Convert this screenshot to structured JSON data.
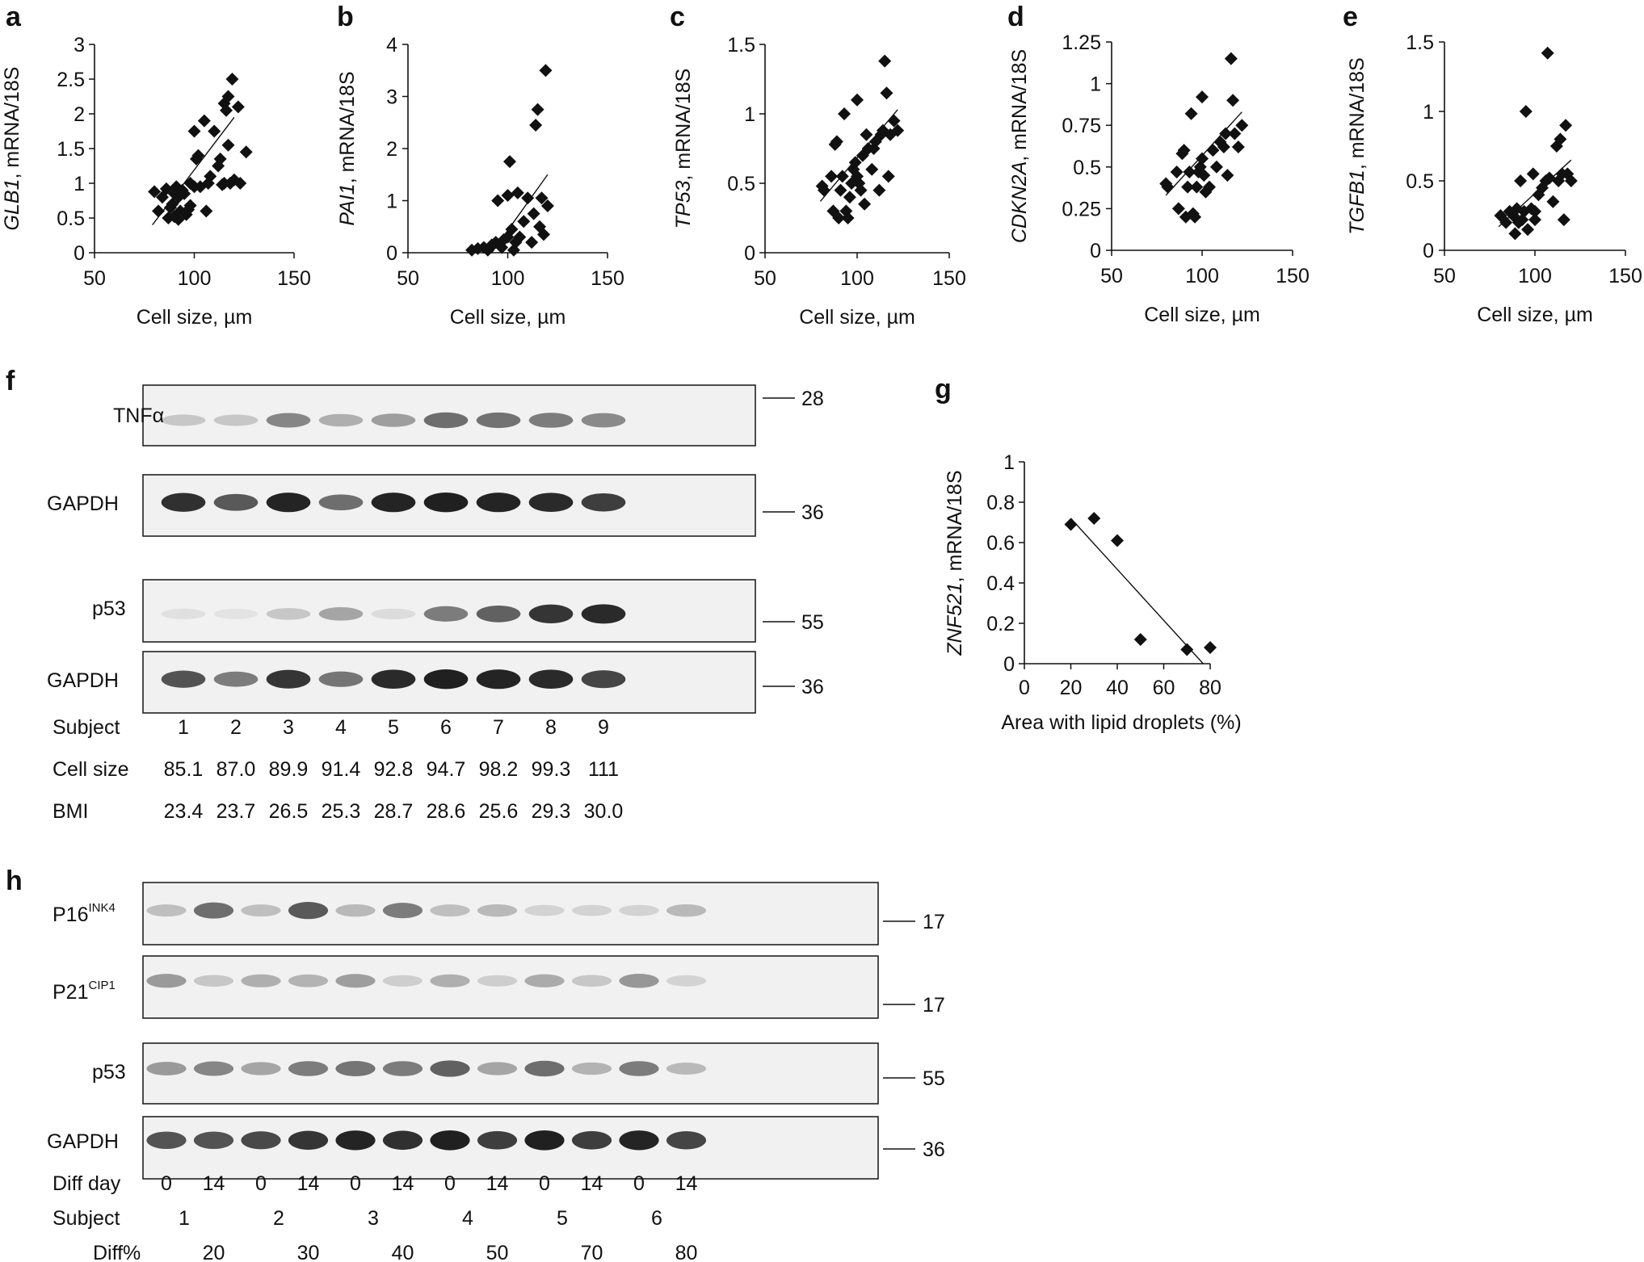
{
  "scatter_panels": [
    {
      "letter": "a",
      "gene": "GLB1",
      "ylabel_suffix": ", mRNA/18S",
      "xlabel": "Cell size, µm",
      "xlim": [
        50,
        150
      ],
      "xticks": [
        "50",
        "100",
        "150"
      ],
      "ylim": [
        0,
        3
      ],
      "yticks": [
        "0",
        "0.5",
        "1",
        "1.5",
        "2",
        "2.5",
        "3"
      ],
      "ytick_values": [
        0,
        0.5,
        1,
        1.5,
        2,
        2.5,
        3
      ],
      "fit": [
        [
          79,
          0.4
        ],
        [
          120,
          1.95
        ]
      ]
    },
    {
      "letter": "b",
      "gene": "PAI1",
      "ylabel_suffix": ", mRNA/18S",
      "xlabel": "Cell size, µm",
      "xlim": [
        50,
        150
      ],
      "xticks": [
        "50",
        "100",
        "150"
      ],
      "ylim": [
        0,
        4
      ],
      "yticks": [
        "0",
        "1",
        "2",
        "3",
        "4"
      ],
      "ytick_values": [
        0,
        1,
        2,
        3,
        4
      ],
      "fit": [
        [
          92,
          0
        ],
        [
          120,
          1.5
        ]
      ]
    },
    {
      "letter": "c",
      "gene": "TP53",
      "ylabel_suffix": ", mRNA/18S",
      "xlabel": "Cell size, µm",
      "xlim": [
        50,
        150
      ],
      "xticks": [
        "50",
        "100",
        "150"
      ],
      "ylim": [
        0,
        1.5
      ],
      "yticks": [
        "0",
        "0.5",
        "1",
        "1.5"
      ],
      "ytick_values": [
        0,
        0.5,
        1,
        1.5
      ],
      "fit": [
        [
          80,
          0.37
        ],
        [
          122,
          1.03
        ]
      ]
    },
    {
      "letter": "d",
      "gene": "CDKN2A",
      "ylabel_suffix": ", mRNA/18S",
      "xlabel": "Cell size, µm",
      "xlim": [
        50,
        150
      ],
      "xticks": [
        "50",
        "100",
        "150"
      ],
      "ylim": [
        0,
        1.25
      ],
      "yticks": [
        "0",
        "0.25",
        "0.5",
        "0.75",
        "1",
        "1.25"
      ],
      "ytick_values": [
        0,
        0.25,
        0.5,
        0.75,
        1,
        1.25
      ],
      "fit": [
        [
          80,
          0.33
        ],
        [
          122,
          0.83
        ]
      ]
    },
    {
      "letter": "e",
      "gene": "TGFB1",
      "ylabel_suffix": ", mRNA/18S",
      "xlabel": "Cell size, µm",
      "xlim": [
        50,
        150
      ],
      "xticks": [
        "50",
        "100",
        "150"
      ],
      "ylim": [
        0,
        1.5
      ],
      "yticks": [
        "0",
        "0.5",
        "1",
        "1.5"
      ],
      "ytick_values": [
        0,
        0.5,
        1,
        1.5
      ],
      "fit": [
        [
          80,
          0.17
        ],
        [
          120,
          0.65
        ]
      ]
    }
  ],
  "panel_g": {
    "letter": "g",
    "gene": "ZNF521",
    "ylabel_suffix": ", mRNA/18S",
    "xlabel": "Area with lipid droplets (%)",
    "xlim": [
      0,
      80
    ],
    "xticks": [
      "0",
      "20",
      "40",
      "60",
      "80"
    ],
    "xtick_values": [
      0,
      20,
      40,
      60,
      80
    ],
    "ylim": [
      0,
      1
    ],
    "yticks": [
      "0",
      "0.2",
      "0.4",
      "0.6",
      "0.8",
      "1"
    ],
    "ytick_values": [
      0,
      0.2,
      0.4,
      0.6,
      0.8,
      1
    ],
    "fit": [
      [
        20,
        0.72
      ],
      [
        77,
        0
      ]
    ]
  },
  "chart_data": [
    {
      "type": "scatter",
      "panel": "a",
      "xlabel": "Cell size, µm",
      "ylabel": "GLB1, mRNA/18S",
      "xlim": [
        50,
        150
      ],
      "ylim": [
        0,
        3
      ],
      "x": [
        80,
        82,
        84,
        86,
        87,
        88,
        89,
        90,
        90,
        91,
        92,
        92,
        93,
        94,
        95,
        96,
        97,
        98,
        98,
        100,
        100,
        101,
        102,
        103,
        105,
        106,
        107,
        108,
        110,
        112,
        113,
        114,
        115,
        115,
        116,
        117,
        117,
        118,
        119,
        120,
        122,
        123,
        126
      ],
      "y": [
        0.88,
        0.6,
        0.8,
        0.92,
        0.5,
        0.65,
        0.7,
        0.85,
        0.52,
        0.95,
        0.48,
        0.8,
        0.6,
        0.9,
        0.85,
        0.55,
        0.62,
        1.0,
        0.68,
        1.75,
        0.95,
        1.35,
        1.4,
        0.95,
        1.9,
        0.6,
        1.0,
        1.1,
        1.75,
        1.25,
        1.35,
        0.98,
        2.15,
        1.0,
        2.05,
        1.55,
        2.25,
        1.0,
        2.5,
        1.05,
        2.1,
        1.0,
        1.45
      ]
    },
    {
      "type": "scatter",
      "panel": "b",
      "xlabel": "Cell size, µm",
      "ylabel": "PAI1, mRNA/18S",
      "xlim": [
        50,
        150
      ],
      "ylim": [
        0,
        4
      ],
      "x": [
        82,
        85,
        88,
        90,
        92,
        94,
        95,
        97,
        98,
        100,
        100,
        101,
        102,
        103,
        104,
        105,
        106,
        108,
        110,
        112,
        113,
        114,
        115,
        116,
        117,
        118,
        119,
        120
      ],
      "y": [
        0.05,
        0.08,
        0.1,
        0.05,
        0.15,
        0.2,
        1.0,
        0.1,
        0.25,
        0.3,
        1.1,
        1.75,
        0.45,
        0.05,
        0.2,
        1.15,
        0.3,
        0.6,
        1.05,
        0.2,
        0.75,
        2.45,
        2.75,
        0.5,
        1.05,
        0.35,
        3.5,
        0.9
      ]
    },
    {
      "type": "scatter",
      "panel": "c",
      "xlabel": "Cell size, µm",
      "ylabel": "TP53, mRNA/18S",
      "xlim": [
        50,
        150
      ],
      "ylim": [
        0,
        1.5
      ],
      "x": [
        81,
        82,
        86,
        87,
        88,
        89,
        90,
        91,
        92,
        93,
        94,
        95,
        96,
        97,
        98,
        99,
        100,
        100,
        101,
        102,
        103,
        104,
        105,
        106,
        108,
        109,
        110,
        112,
        113,
        114,
        115,
        116,
        117,
        118,
        120,
        122
      ],
      "y": [
        0.48,
        0.45,
        0.55,
        0.3,
        0.78,
        0.8,
        0.25,
        0.45,
        0.55,
        1.0,
        0.3,
        0.25,
        0.4,
        0.5,
        0.6,
        0.65,
        1.1,
        0.55,
        0.5,
        0.45,
        0.7,
        0.35,
        0.85,
        0.75,
        0.6,
        0.75,
        0.8,
        0.45,
        0.85,
        0.88,
        1.38,
        1.15,
        0.55,
        0.85,
        0.95,
        0.88
      ]
    },
    {
      "type": "scatter",
      "panel": "d",
      "xlabel": "Cell size, µm",
      "ylabel": "CDKN2A, mRNA/18S",
      "xlim": [
        50,
        150
      ],
      "ylim": [
        0,
        1.25
      ],
      "x": [
        80,
        81,
        86,
        87,
        89,
        90,
        91,
        92,
        93,
        94,
        95,
        96,
        97,
        98,
        99,
        100,
        100,
        101,
        102,
        104,
        106,
        108,
        110,
        112,
        113,
        114,
        116,
        117,
        118,
        120,
        122
      ],
      "y": [
        0.4,
        0.38,
        0.47,
        0.25,
        0.58,
        0.6,
        0.2,
        0.38,
        0.47,
        0.82,
        0.22,
        0.2,
        0.38,
        0.47,
        0.5,
        0.55,
        0.92,
        0.45,
        0.35,
        0.38,
        0.6,
        0.5,
        0.65,
        0.62,
        0.7,
        0.45,
        1.15,
        0.9,
        0.7,
        0.62,
        0.75
      ]
    },
    {
      "type": "scatter",
      "panel": "e",
      "xlabel": "Cell size, µm",
      "ylabel": "TGFB1, mRNA/18S",
      "xlim": [
        50,
        150
      ],
      "ylim": [
        0,
        1.5
      ],
      "x": [
        81,
        84,
        86,
        88,
        89,
        90,
        91,
        92,
        93,
        94,
        95,
        96,
        98,
        99,
        100,
        100,
        102,
        104,
        106,
        107,
        108,
        110,
        112,
        113,
        114,
        115,
        116,
        117,
        118,
        120
      ],
      "y": [
        0.25,
        0.2,
        0.28,
        0.25,
        0.12,
        0.3,
        0.2,
        0.5,
        0.22,
        0.28,
        1.0,
        0.15,
        0.3,
        0.55,
        0.22,
        0.28,
        0.4,
        0.45,
        0.5,
        1.42,
        0.52,
        0.35,
        0.75,
        0.5,
        0.8,
        0.55,
        0.22,
        0.9,
        0.55,
        0.5
      ]
    },
    {
      "type": "scatter",
      "panel": "g",
      "xlabel": "Area with lipid droplets (%)",
      "ylabel": "ZNF521, mRNA/18S",
      "xlim": [
        0,
        80
      ],
      "ylim": [
        0,
        1
      ],
      "x": [
        20,
        30,
        40,
        50,
        70,
        80
      ],
      "y": [
        0.69,
        0.72,
        0.61,
        0.12,
        0.07,
        0.08
      ]
    }
  ],
  "panel_f": {
    "letter": "f",
    "blots": [
      {
        "label": "TNFα",
        "marker": "28"
      },
      {
        "label": "GAPDH",
        "marker": "36"
      },
      {
        "label": "p53",
        "marker": "55"
      },
      {
        "label": "GAPDH",
        "marker": "36"
      }
    ],
    "band_intensity": [
      [
        0.18,
        0.18,
        0.5,
        0.3,
        0.38,
        0.62,
        0.6,
        0.55,
        0.48
      ],
      [
        0.92,
        0.72,
        0.98,
        0.62,
        0.98,
        1.0,
        0.98,
        0.95,
        0.85
      ],
      [
        0.06,
        0.04,
        0.18,
        0.35,
        0.08,
        0.55,
        0.68,
        0.9,
        0.95
      ],
      [
        0.75,
        0.55,
        0.9,
        0.58,
        0.95,
        1.0,
        0.98,
        0.95,
        0.82
      ]
    ],
    "rows": [
      {
        "label": "Subject",
        "values": [
          "1",
          "2",
          "3",
          "4",
          "5",
          "6",
          "7",
          "8",
          "9"
        ]
      },
      {
        "label": "Cell size",
        "values": [
          "85.1",
          "87.0",
          "89.9",
          "91.4",
          "92.8",
          "94.7",
          "98.2",
          "99.3",
          "111"
        ]
      },
      {
        "label": "BMI",
        "values": [
          "23.4",
          "23.7",
          "26.5",
          "25.3",
          "28.7",
          "28.6",
          "25.6",
          "29.3",
          "30.0"
        ]
      }
    ]
  },
  "panel_h": {
    "letter": "h",
    "blots": [
      {
        "label": "P16",
        "sup": "INK4",
        "marker": "17"
      },
      {
        "label": "P21",
        "sup": "CIP1",
        "marker": "17"
      },
      {
        "label": "p53",
        "sup": "",
        "marker": "55"
      },
      {
        "label": "GAPDH",
        "sup": "",
        "marker": "36"
      }
    ],
    "band_intensity": [
      [
        0.22,
        0.62,
        0.22,
        0.72,
        0.25,
        0.55,
        0.22,
        0.25,
        0.12,
        0.12,
        0.12,
        0.25
      ],
      [
        0.4,
        0.18,
        0.3,
        0.28,
        0.38,
        0.15,
        0.3,
        0.15,
        0.32,
        0.18,
        0.42,
        0.12
      ],
      [
        0.4,
        0.5,
        0.35,
        0.55,
        0.58,
        0.55,
        0.68,
        0.35,
        0.62,
        0.28,
        0.55,
        0.25
      ],
      [
        0.75,
        0.75,
        0.8,
        0.9,
        0.98,
        0.92,
        1.0,
        0.85,
        1.0,
        0.85,
        0.98,
        0.82
      ]
    ],
    "diff_day": {
      "label": "Diff day",
      "values": [
        "0",
        "14",
        "0",
        "14",
        "0",
        "14",
        "0",
        "14",
        "0",
        "14",
        "0",
        "14"
      ]
    },
    "subject": {
      "label": "Subject",
      "values": [
        "1",
        "2",
        "3",
        "4",
        "5",
        "6"
      ]
    },
    "diff_pct": {
      "label": "Diff%",
      "values": [
        "20",
        "30",
        "40",
        "50",
        "70",
        "80"
      ]
    }
  }
}
